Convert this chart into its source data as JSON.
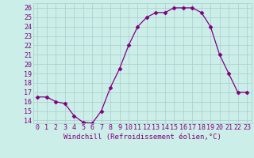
{
  "x": [
    0,
    1,
    2,
    3,
    4,
    5,
    6,
    7,
    8,
    9,
    10,
    11,
    12,
    13,
    14,
    15,
    16,
    17,
    18,
    19,
    20,
    21,
    22,
    23
  ],
  "y": [
    16.5,
    16.5,
    16.0,
    15.8,
    14.5,
    13.8,
    13.7,
    15.0,
    17.5,
    19.5,
    22.0,
    24.0,
    25.0,
    25.5,
    25.5,
    26.0,
    26.0,
    26.0,
    25.5,
    24.0,
    21.0,
    19.0,
    17.0,
    17.0
  ],
  "line_color": "#800080",
  "marker": "D",
  "marker_size": 2.5,
  "bg_color": "#cceee8",
  "grid_color": "#aacccc",
  "xlabel": "Windchill (Refroidissement éolien,°C)",
  "xlabel_color": "#800080",
  "yticks": [
    14,
    15,
    16,
    17,
    18,
    19,
    20,
    21,
    22,
    23,
    24,
    25,
    26
  ],
  "xlim": [
    -0.5,
    23.5
  ],
  "ylim": [
    13.7,
    26.5
  ],
  "tick_color": "#800080",
  "label_fontsize": 6.5,
  "tick_fontsize": 6
}
